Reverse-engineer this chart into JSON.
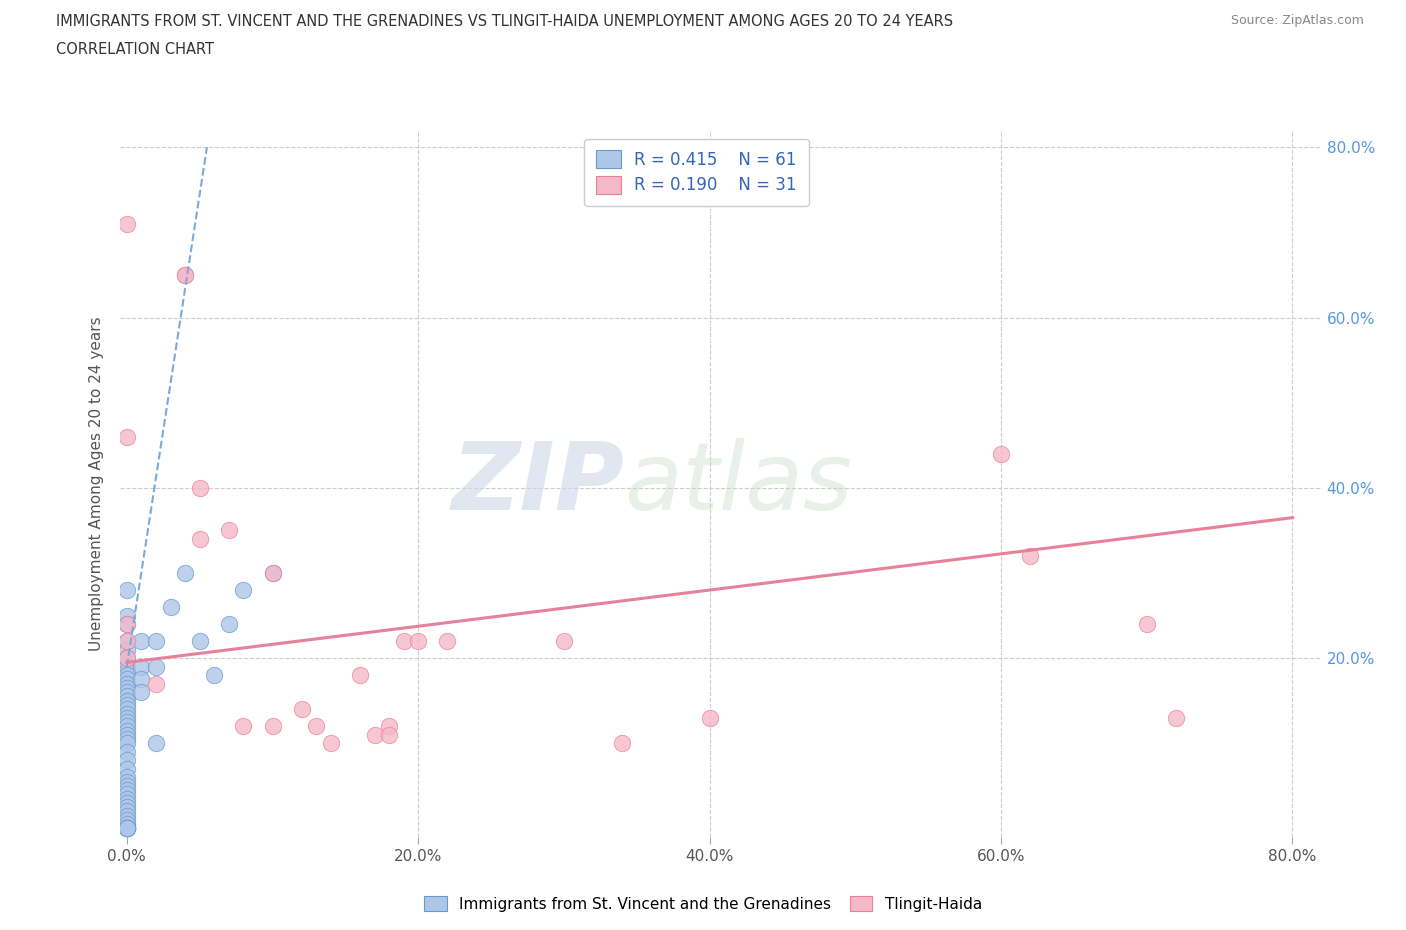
{
  "title_line1": "IMMIGRANTS FROM ST. VINCENT AND THE GRENADINES VS TLINGIT-HAIDA UNEMPLOYMENT AMONG AGES 20 TO 24 YEARS",
  "title_line2": "CORRELATION CHART",
  "source": "Source: ZipAtlas.com",
  "ylabel": "Unemployment Among Ages 20 to 24 years",
  "xlim": [
    -0.005,
    0.82
  ],
  "ylim": [
    -0.01,
    0.82
  ],
  "xticks": [
    0.0,
    0.2,
    0.4,
    0.6,
    0.8
  ],
  "yticks": [
    0.0,
    0.2,
    0.4,
    0.6,
    0.8
  ],
  "xticklabels": [
    "0.0%",
    "20.0%",
    "40.0%",
    "60.0%",
    "80.0%"
  ],
  "right_yticklabels": [
    "20.0%",
    "40.0%",
    "60.0%",
    "80.0%"
  ],
  "right_yticks": [
    0.2,
    0.4,
    0.6,
    0.8
  ],
  "blue_R": 0.415,
  "blue_N": 61,
  "pink_R": 0.19,
  "pink_N": 31,
  "blue_color": "#aec6e8",
  "pink_color": "#f4b8c8",
  "blue_edge_color": "#6699cc",
  "pink_edge_color": "#e8809a",
  "blue_line_color": "#7aaadd",
  "pink_line_color": "#e8809a",
  "legend_label_blue": "Immigrants from St. Vincent and the Grenadines",
  "legend_label_pink": "Tlingit-Haida",
  "watermark_zip": "ZIP",
  "watermark_atlas": "atlas",
  "blue_scatter_x": [
    0.0,
    0.0,
    0.0,
    0.0,
    0.0,
    0.0,
    0.0,
    0.0,
    0.0,
    0.0,
    0.0,
    0.0,
    0.0,
    0.0,
    0.0,
    0.0,
    0.0,
    0.0,
    0.0,
    0.0,
    0.0,
    0.0,
    0.0,
    0.0,
    0.0,
    0.0,
    0.0,
    0.0,
    0.0,
    0.0,
    0.0,
    0.0,
    0.0,
    0.0,
    0.0,
    0.0,
    0.0,
    0.0,
    0.0,
    0.0,
    0.0,
    0.0,
    0.0,
    0.0,
    0.0,
    0.0,
    0.0,
    0.01,
    0.01,
    0.01,
    0.01,
    0.02,
    0.02,
    0.02,
    0.03,
    0.04,
    0.05,
    0.06,
    0.07,
    0.08,
    0.1
  ],
  "blue_scatter_y": [
    0.28,
    0.25,
    0.24,
    0.22,
    0.21,
    0.2,
    0.19,
    0.185,
    0.18,
    0.175,
    0.17,
    0.165,
    0.16,
    0.155,
    0.15,
    0.145,
    0.14,
    0.135,
    0.13,
    0.125,
    0.12,
    0.115,
    0.11,
    0.105,
    0.1,
    0.09,
    0.08,
    0.07,
    0.06,
    0.055,
    0.05,
    0.045,
    0.04,
    0.035,
    0.03,
    0.025,
    0.02,
    0.015,
    0.01,
    0.005,
    0.0,
    0.0,
    0.0,
    0.0,
    0.0,
    0.0,
    0.0,
    0.22,
    0.19,
    0.175,
    0.16,
    0.22,
    0.19,
    0.1,
    0.26,
    0.3,
    0.22,
    0.18,
    0.24,
    0.28,
    0.3
  ],
  "pink_scatter_x": [
    0.0,
    0.0,
    0.0,
    0.0,
    0.0,
    0.02,
    0.04,
    0.04,
    0.05,
    0.05,
    0.07,
    0.08,
    0.1,
    0.1,
    0.12,
    0.13,
    0.14,
    0.16,
    0.17,
    0.18,
    0.18,
    0.19,
    0.2,
    0.22,
    0.3,
    0.34,
    0.4,
    0.6,
    0.62,
    0.7,
    0.72
  ],
  "pink_scatter_y": [
    0.71,
    0.46,
    0.24,
    0.22,
    0.2,
    0.17,
    0.65,
    0.65,
    0.4,
    0.34,
    0.35,
    0.12,
    0.3,
    0.12,
    0.14,
    0.12,
    0.1,
    0.18,
    0.11,
    0.12,
    0.11,
    0.22,
    0.22,
    0.22,
    0.22,
    0.1,
    0.13,
    0.44,
    0.32,
    0.24,
    0.13
  ],
  "blue_trendline_x": [
    0.0,
    0.055
  ],
  "blue_trendline_y": [
    0.19,
    0.8
  ],
  "pink_trendline_x": [
    0.0,
    0.8
  ],
  "pink_trendline_y": [
    0.195,
    0.365
  ]
}
